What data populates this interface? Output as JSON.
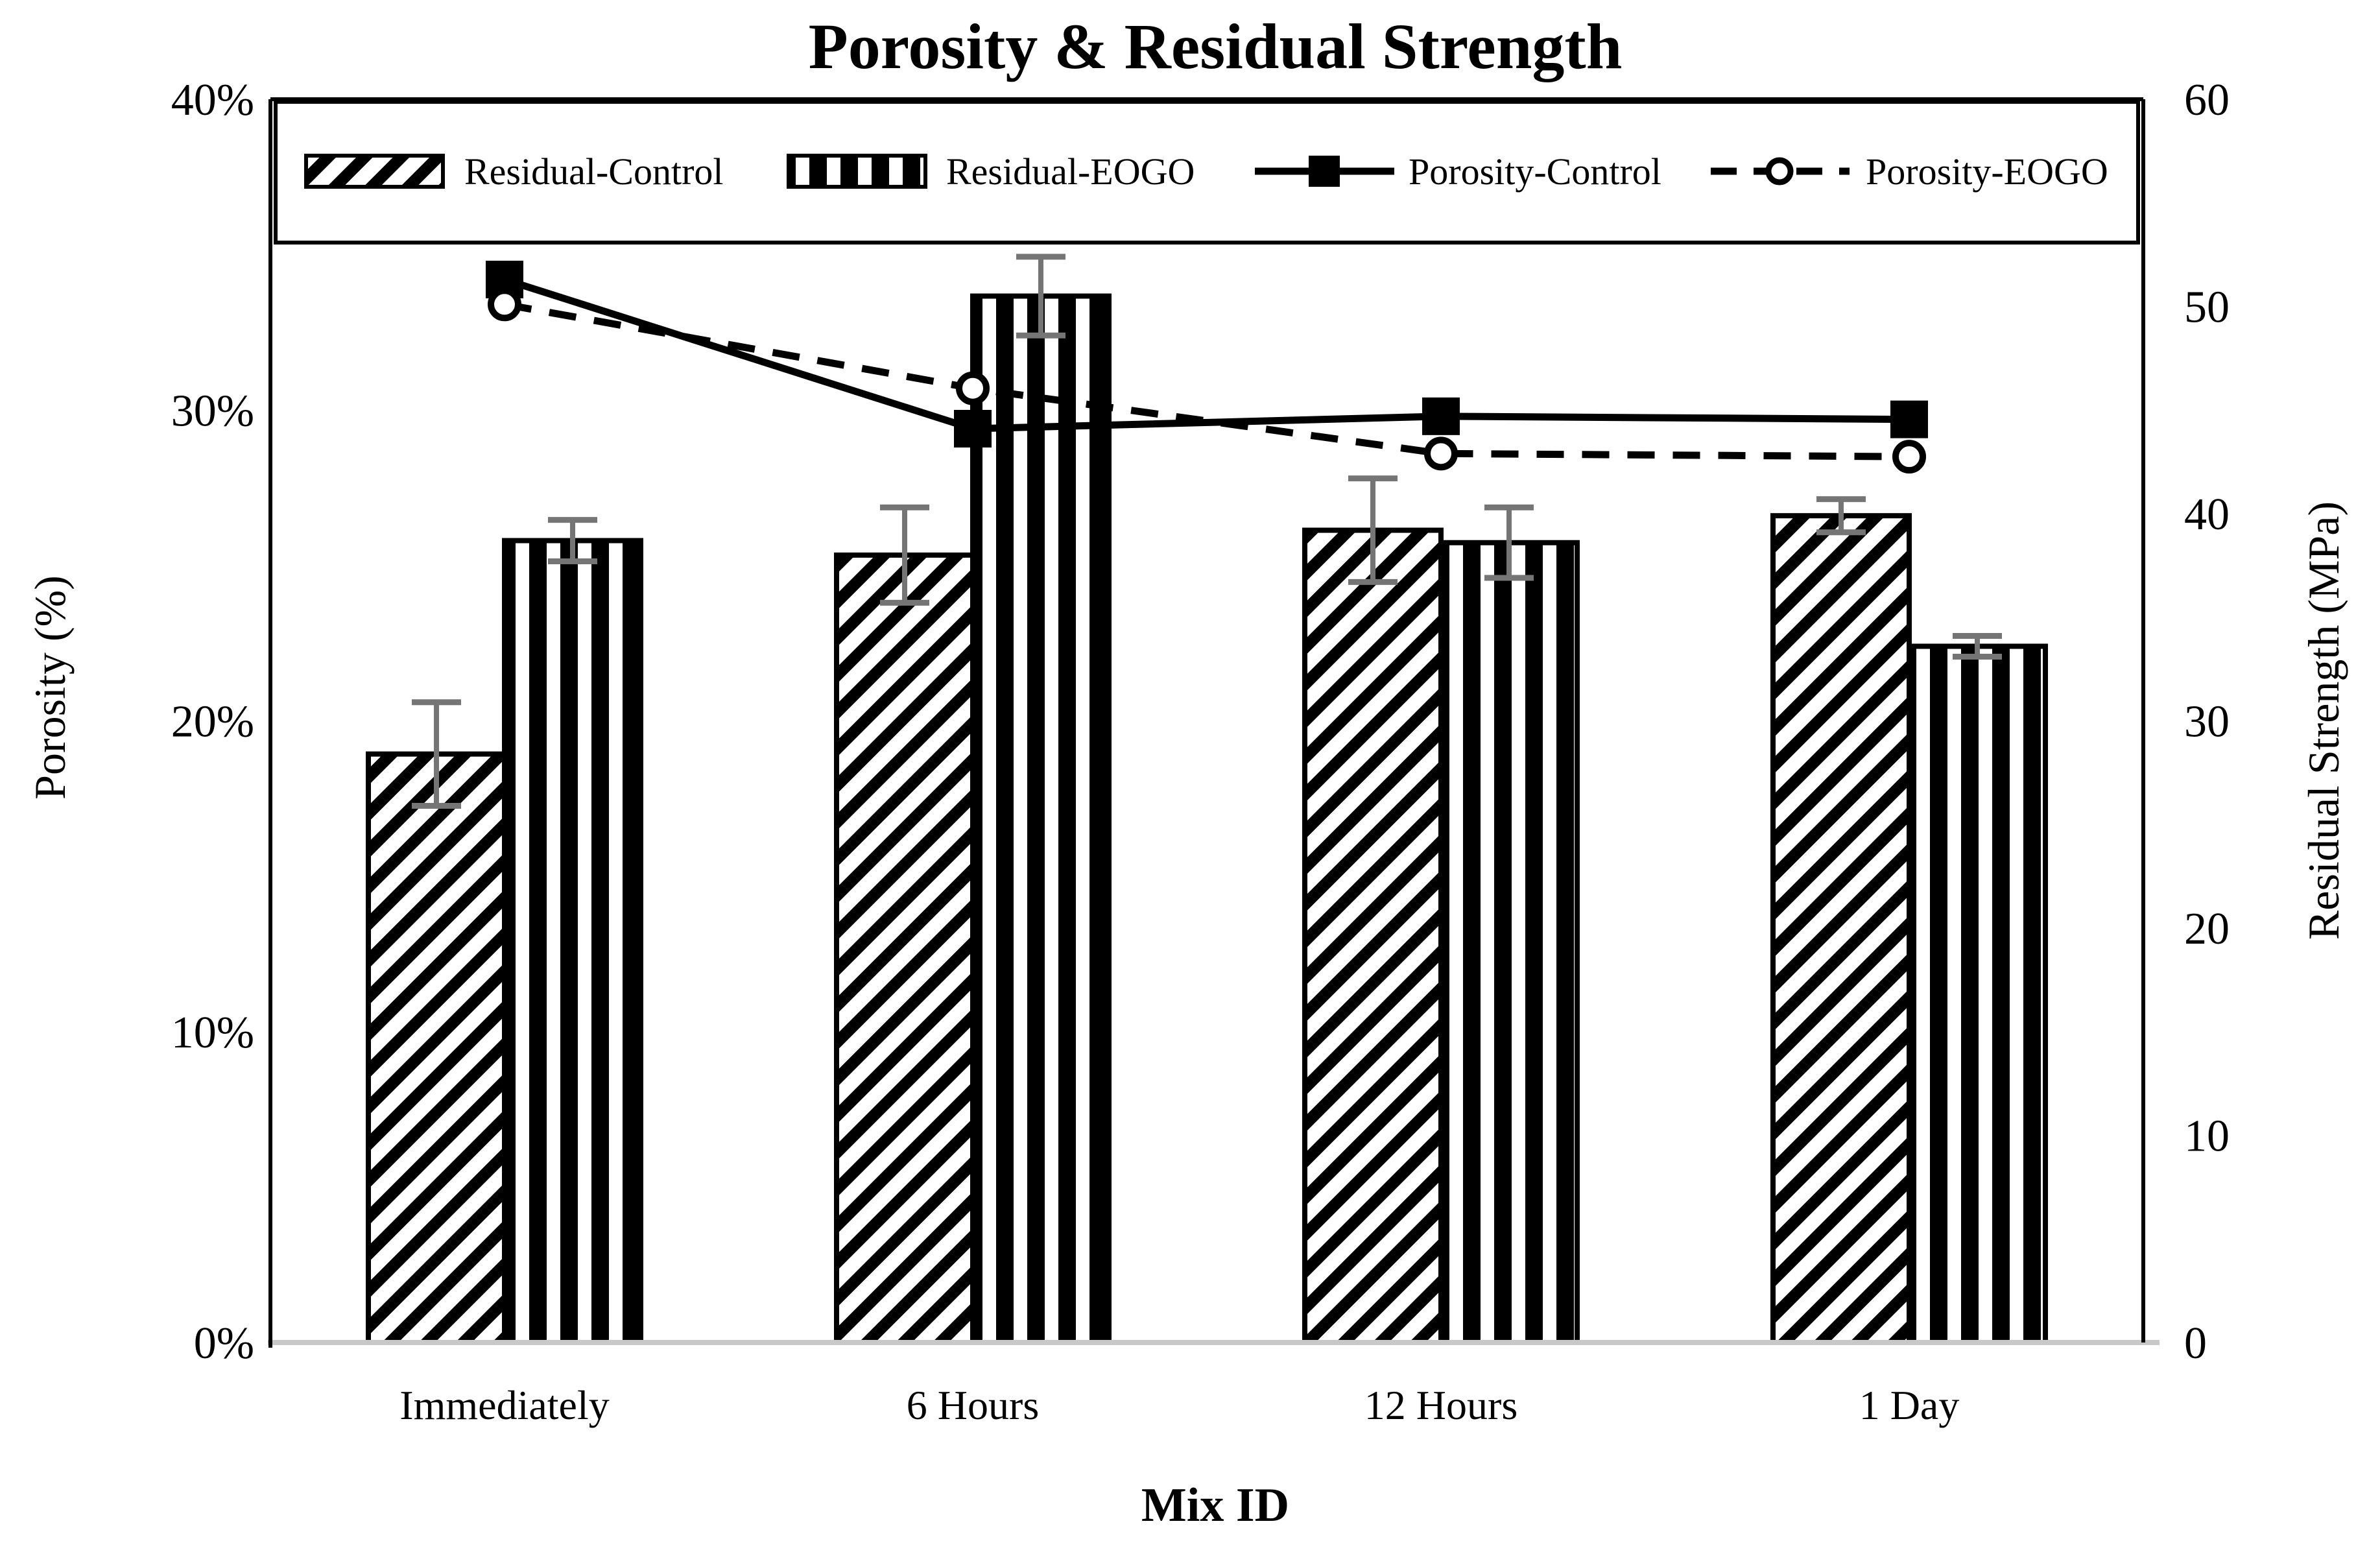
{
  "title": "Porosity & Residual Strength",
  "chart_data": {
    "type": "combo-bar-line",
    "title": "Porosity & Residual Strength",
    "xlabel": "Mix ID",
    "categories": [
      "Immediately",
      "6 Hours",
      "12 Hours",
      "1 Day"
    ],
    "left_axis": {
      "label": "Porosity (%)",
      "min": 0,
      "max": 40,
      "ticks": [
        "0%",
        "10%",
        "20%",
        "30%",
        "40%"
      ]
    },
    "right_axis": {
      "label": "Residual Strength (MPa)",
      "min": 0,
      "max": 60,
      "ticks": [
        "0",
        "10",
        "20",
        "30",
        "40",
        "50",
        "60"
      ]
    },
    "bar_series": [
      {
        "name": "Residual-Control",
        "axis": "right",
        "pattern": "diagonal-hatch",
        "values": [
          28.4,
          38.0,
          39.2,
          39.9
        ],
        "errors": [
          2.5,
          2.3,
          2.5,
          0.8
        ]
      },
      {
        "name": "Residual-EOGO",
        "axis": "right",
        "pattern": "vertical-stripes",
        "values": [
          38.7,
          50.5,
          38.6,
          33.6
        ],
        "errors": [
          1.0,
          1.9,
          1.7,
          0.5
        ]
      }
    ],
    "line_series": [
      {
        "name": "Porosity-Control",
        "axis": "left",
        "style": "solid",
        "marker": "filled-square",
        "values": [
          34.2,
          29.4,
          29.8,
          29.7
        ]
      },
      {
        "name": "Porosity-EOGO",
        "axis": "left",
        "style": "dashed",
        "marker": "open-circle",
        "values": [
          33.4,
          30.7,
          28.6,
          28.5
        ]
      }
    ],
    "legend_position": "top-inside",
    "grid": false,
    "colors": {
      "foreground": "#000000",
      "error_bar": "#757575",
      "baseline": "#c8c8c8",
      "background": "#ffffff"
    }
  }
}
